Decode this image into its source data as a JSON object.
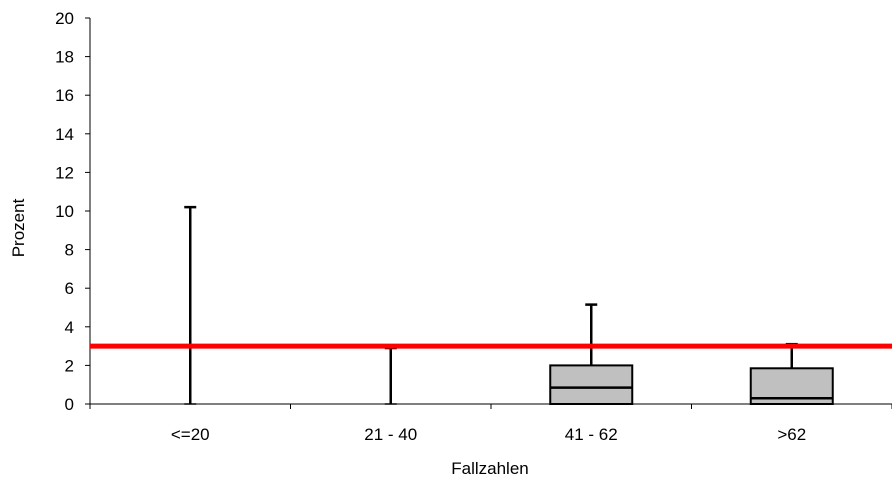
{
  "chart_data": {
    "type": "box",
    "title": "",
    "xlabel": "Fallzahlen",
    "ylabel": "Prozent",
    "ylim": [
      0,
      20
    ],
    "yticks": [
      0,
      2,
      4,
      6,
      8,
      10,
      12,
      14,
      16,
      18,
      20
    ],
    "categories": [
      "<=20",
      "21 - 40",
      "41 - 62",
      ">62"
    ],
    "boxes": [
      {
        "category": "<=20",
        "min": 0,
        "q1": 0,
        "median": 0,
        "q3": 0,
        "max": 10.2
      },
      {
        "category": "21 - 40",
        "min": 0,
        "q1": 0,
        "median": 0,
        "q3": 0,
        "max": 2.9
      },
      {
        "category": "41 - 62",
        "min": 0,
        "q1": 0,
        "median": 0.85,
        "q3": 2.0,
        "max": 5.15
      },
      {
        "category": ">62",
        "min": 0,
        "q1": 0,
        "median": 0.3,
        "q3": 1.85,
        "max": 3.1
      }
    ],
    "reference_line": {
      "value": 3,
      "color": "#ff0000"
    },
    "box_fill": "#c0c0c0",
    "grid": false,
    "legend": "none"
  }
}
